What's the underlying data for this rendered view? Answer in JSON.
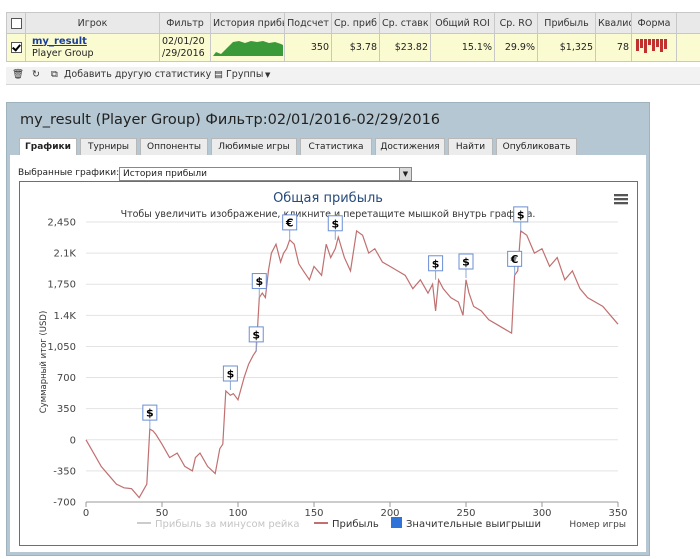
{
  "table": {
    "headers": [
      "",
      "Игрок",
      "Фильтр",
      "История прибы",
      "Подсчет",
      "Ср. приб",
      "Ср. ставк",
      "Общий ROI",
      "Ср. RO",
      "Прибыль",
      "Квалис",
      "Форма",
      ""
    ],
    "row": {
      "player": "my_result",
      "group": "Player Group",
      "filter_line1": "02/01/20",
      "filter_line2": "/29/2016",
      "count": "350",
      "avg_profit": "$3.78",
      "avg_stake": "$23.82",
      "total_roi": "15.1%",
      "avg_roi": "29.9%",
      "profit": "$1,325",
      "qualis": "78"
    }
  },
  "toolbar": {
    "add_stats": "Добавить другую статистику",
    "groups": "Группы"
  },
  "panel": {
    "title": "my_result (Player Group) Фильтр:02/01/2016-02/29/2016",
    "close": "×",
    "tabs": [
      "Графики",
      "Турниры",
      "Оппоненты",
      "Любимые игры",
      "Статистика",
      "Достижения",
      "Найти",
      "Опубликовать"
    ],
    "selected_charts_label": "Выбранные графики:",
    "selected_chart": "История прибыли"
  },
  "chart_data": {
    "type": "line",
    "title": "Общая прибыль",
    "subtitle": "Чтобы увеличить изображение, кликните и перетащите мышкой внутрь графика.",
    "xlabel": "Номер игры",
    "ylabel": "Суммарный итог (USD)",
    "xlim": [
      0,
      350
    ],
    "ylim": [
      -700,
      2450
    ],
    "x_ticks": [
      0,
      50,
      100,
      150,
      200,
      250,
      300,
      350
    ],
    "y_ticks": [
      -700,
      -350,
      0,
      350,
      700,
      1050,
      1400,
      1750,
      2100,
      2450
    ],
    "y_tick_labels": [
      "-700",
      "-350",
      "0",
      "350",
      "700",
      "1,050",
      "1.4K",
      "1,750",
      "2.1K",
      "2,450"
    ],
    "legend": [
      "Прибыль за минусом рейка",
      "Прибыль",
      "Значительные выигрыши"
    ],
    "colors": {
      "line": "#c07070",
      "rake_line": "#cccccc",
      "wins": "#2f73d9",
      "grid": "#e3e3e3"
    },
    "series": [
      {
        "name": "Прибыль",
        "x": [
          0,
          5,
          10,
          15,
          20,
          25,
          30,
          35,
          40,
          42,
          44,
          46,
          50,
          55,
          60,
          65,
          70,
          72,
          75,
          80,
          85,
          88,
          90,
          92,
          95,
          97,
          100,
          104,
          107,
          110,
          112,
          114,
          116,
          118,
          120,
          122,
          125,
          128,
          130,
          132,
          134,
          137,
          140,
          143,
          147,
          150,
          155,
          158,
          161,
          164,
          166,
          170,
          174,
          178,
          182,
          186,
          190,
          195,
          200,
          205,
          210,
          215,
          220,
          225,
          228,
          230,
          232,
          235,
          240,
          245,
          248,
          250,
          252,
          255,
          260,
          265,
          270,
          275,
          280,
          282,
          284,
          286,
          290,
          295,
          300,
          305,
          310,
          315,
          320,
          325,
          330,
          335,
          340,
          345,
          350
        ],
        "y": [
          0,
          -150,
          -300,
          -400,
          -500,
          -540,
          -550,
          -650,
          -500,
          120,
          100,
          60,
          -50,
          -200,
          -150,
          -300,
          -350,
          -200,
          -150,
          -300,
          -380,
          -100,
          -50,
          550,
          500,
          520,
          450,
          700,
          850,
          950,
          1000,
          1600,
          1650,
          1600,
          1900,
          2100,
          2200,
          2000,
          2100,
          2150,
          2250,
          2200,
          1980,
          1900,
          1800,
          1950,
          1850,
          2200,
          2050,
          2150,
          2280,
          2050,
          1900,
          2350,
          2300,
          2100,
          2150,
          2000,
          1950,
          1900,
          1850,
          1700,
          1800,
          1650,
          1750,
          1450,
          1800,
          1700,
          1600,
          1550,
          1400,
          1800,
          1650,
          1500,
          1450,
          1350,
          1300,
          1250,
          1200,
          1850,
          1900,
          2350,
          2300,
          2100,
          2150,
          1950,
          2050,
          1800,
          1900,
          1700,
          1600,
          1550,
          1500,
          1400,
          1300
        ]
      }
    ],
    "big_wins": [
      {
        "x": 42,
        "y": 120,
        "label": "$"
      },
      {
        "x": 95,
        "y": 560,
        "label": "$"
      },
      {
        "x": 112,
        "y": 1000,
        "label": "$"
      },
      {
        "x": 114,
        "y": 1600,
        "label": "$"
      },
      {
        "x": 134,
        "y": 2260,
        "label": "€"
      },
      {
        "x": 164,
        "y": 2250,
        "label": "$"
      },
      {
        "x": 230,
        "y": 1800,
        "label": "$"
      },
      {
        "x": 250,
        "y": 1820,
        "label": "$"
      },
      {
        "x": 282,
        "y": 1850,
        "label": "€"
      },
      {
        "x": 286,
        "y": 2350,
        "label": "$"
      }
    ]
  }
}
